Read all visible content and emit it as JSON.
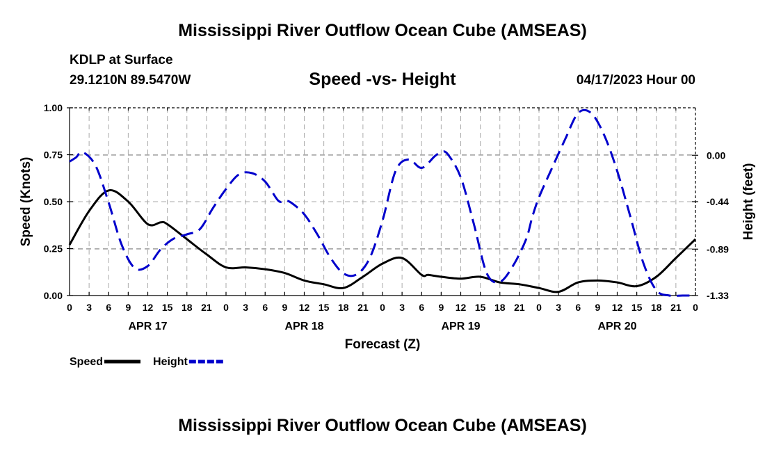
{
  "header": {
    "title_top": "Mississippi River Outflow Ocean Cube (AMSEAS)",
    "title_bottom": "Mississippi River Outflow Ocean Cube (AMSEAS)",
    "station": "KDLP at Surface",
    "coords": "29.1210N  89.5470W",
    "subtitle": "Speed -vs- Height",
    "datetime": "04/17/2023 Hour 00"
  },
  "chart_data": {
    "type": "line",
    "title": "Speed -vs- Height",
    "xlabel": "Forecast (Z)",
    "ylabel_left": "Speed (Knots)",
    "ylabel_right": "Height (feet)",
    "x_range": [
      0,
      96
    ],
    "ylim_left": [
      0,
      1.0
    ],
    "ylim_right": [
      -1.33,
      0.45
    ],
    "hour_ticks": [
      0,
      3,
      6,
      9,
      12,
      15,
      18,
      21,
      24,
      27,
      30,
      33,
      36,
      39,
      42,
      45,
      48,
      51,
      54,
      57,
      60,
      63,
      66,
      69,
      72,
      75,
      78,
      81,
      84,
      87,
      90,
      93,
      96
    ],
    "hour_tick_labels": [
      "0",
      "3",
      "6",
      "9",
      "12",
      "15",
      "18",
      "21",
      "0",
      "3",
      "6",
      "9",
      "12",
      "15",
      "18",
      "21",
      "0",
      "3",
      "6",
      "9",
      "12",
      "15",
      "18",
      "21",
      "0",
      "3",
      "6",
      "9",
      "12",
      "15",
      "18",
      "21",
      "0"
    ],
    "day_labels": [
      {
        "hour": 12,
        "label": "APR 17"
      },
      {
        "hour": 36,
        "label": "APR 18"
      },
      {
        "hour": 60,
        "label": "APR 19"
      },
      {
        "hour": 84,
        "label": "APR 20"
      }
    ],
    "left_ticks": [
      0.0,
      0.25,
      0.5,
      0.75,
      1.0
    ],
    "left_tick_labels": [
      "0.00",
      "0.25",
      "0.50",
      "0.75",
      "1.00"
    ],
    "right_ticks": [
      0.0,
      -0.44,
      -0.89,
      -1.33
    ],
    "right_tick_labels": [
      "0.00",
      "-0.44",
      "-0.89",
      "-1.33"
    ],
    "grid": true,
    "legend": [
      {
        "name": "Speed",
        "color": "#000000",
        "dash": false
      },
      {
        "name": "Height",
        "color": "#0000cc",
        "dash": true
      }
    ],
    "series": [
      {
        "name": "Speed",
        "axis": "left",
        "color": "#000000",
        "x": [
          0,
          3,
          6,
          9,
          12,
          14,
          15,
          18,
          21,
          24,
          27,
          30,
          33,
          36,
          39,
          42,
          45,
          48,
          51,
          54,
          55,
          57,
          60,
          63,
          66,
          69,
          72,
          75,
          78,
          81,
          84,
          87,
          90,
          93,
          96
        ],
        "y": [
          0.27,
          0.45,
          0.56,
          0.5,
          0.38,
          0.39,
          0.38,
          0.3,
          0.22,
          0.15,
          0.15,
          0.14,
          0.12,
          0.08,
          0.06,
          0.04,
          0.1,
          0.17,
          0.2,
          0.11,
          0.11,
          0.1,
          0.09,
          0.1,
          0.07,
          0.06,
          0.04,
          0.02,
          0.07,
          0.08,
          0.07,
          0.05,
          0.1,
          0.2,
          0.3
        ]
      },
      {
        "name": "Height",
        "axis": "right",
        "color": "#0000cc",
        "x": [
          0,
          1,
          2,
          4,
          6,
          8,
          10,
          12,
          14,
          16,
          18,
          20,
          22,
          24,
          26,
          28,
          30,
          32,
          33,
          34,
          36,
          38,
          40,
          42,
          44,
          46,
          48,
          50,
          52,
          54,
          56,
          57,
          58,
          60,
          62,
          64,
          66,
          68,
          70,
          71,
          72,
          74,
          76,
          78,
          80,
          82,
          84,
          86,
          88,
          90,
          92,
          94,
          96
        ],
        "y": [
          -0.06,
          -0.02,
          0.03,
          -0.1,
          -0.45,
          -0.85,
          -1.07,
          -1.05,
          -0.89,
          -0.79,
          -0.75,
          -0.7,
          -0.5,
          -0.32,
          -0.18,
          -0.17,
          -0.25,
          -0.43,
          -0.43,
          -0.45,
          -0.56,
          -0.75,
          -0.97,
          -1.12,
          -1.13,
          -0.98,
          -0.62,
          -0.15,
          -0.04,
          -0.12,
          -0.01,
          0.03,
          0.01,
          -0.21,
          -0.65,
          -1.12,
          -1.2,
          -1.05,
          -0.8,
          -0.58,
          -0.4,
          -0.12,
          0.15,
          0.4,
          0.4,
          0.19,
          -0.15,
          -0.58,
          -1.02,
          -1.28,
          -1.33,
          -1.33,
          -1.33
        ]
      }
    ]
  }
}
